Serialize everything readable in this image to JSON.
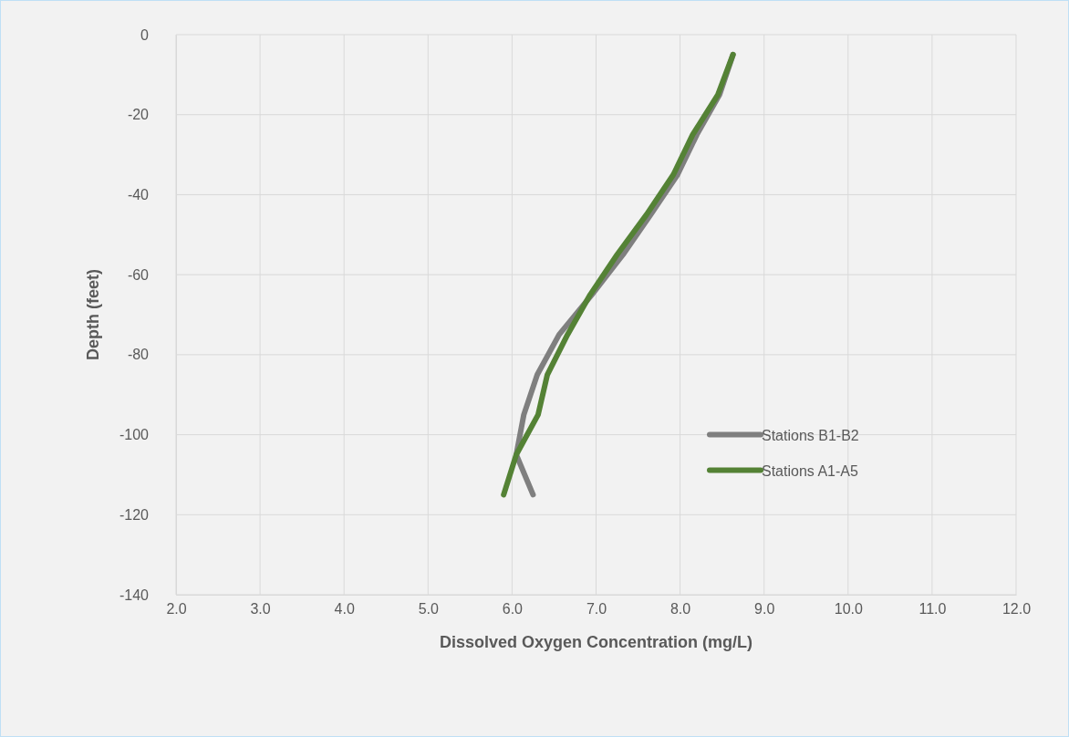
{
  "chart_data": {
    "type": "line",
    "xlabel": "Dissolved Oxygen Concentration (mg/L)",
    "ylabel": "Depth (feet)",
    "xlim": [
      2,
      12
    ],
    "xticks": [
      {
        "value": 2,
        "label": "2.0"
      },
      {
        "value": 3,
        "label": "3.0"
      },
      {
        "value": 4,
        "label": "4.0"
      },
      {
        "value": 5,
        "label": "5.0"
      },
      {
        "value": 6,
        "label": "6.0"
      },
      {
        "value": 7,
        "label": "7.0"
      },
      {
        "value": 8,
        "label": "8.0"
      },
      {
        "value": 9,
        "label": "9.0"
      },
      {
        "value": 10,
        "label": "10.0"
      },
      {
        "value": 11,
        "label": "11.0"
      },
      {
        "value": 12,
        "label": "12.0"
      }
    ],
    "ylim": [
      -140,
      0
    ],
    "yticks": [
      -140,
      -120,
      -100,
      -80,
      -60,
      -40,
      -20,
      0
    ],
    "grid": true,
    "legend": "right",
    "marker": "none",
    "line_style": "solid",
    "series": [
      {
        "name": "Stations B1-B2",
        "color": "#7f7f7f",
        "x": [
          8.63,
          8.47,
          8.2,
          7.97,
          7.65,
          7.32,
          6.95,
          6.56,
          6.3,
          6.14,
          6.05,
          6.25
        ],
        "values": [
          -5,
          -15,
          -25,
          -35,
          -45,
          -55,
          -65,
          -75,
          -85,
          -95,
          -105,
          -115
        ]
      },
      {
        "name": "Stations A1-A5",
        "color": "#548235",
        "x": [
          8.63,
          8.45,
          8.15,
          7.92,
          7.6,
          7.25,
          6.93,
          6.66,
          6.42,
          6.31,
          6.05,
          5.9
        ],
        "values": [
          -5,
          -15,
          -25,
          -35,
          -45,
          -55,
          -65,
          -75,
          -85,
          -95,
          -105,
          -115
        ]
      }
    ]
  }
}
